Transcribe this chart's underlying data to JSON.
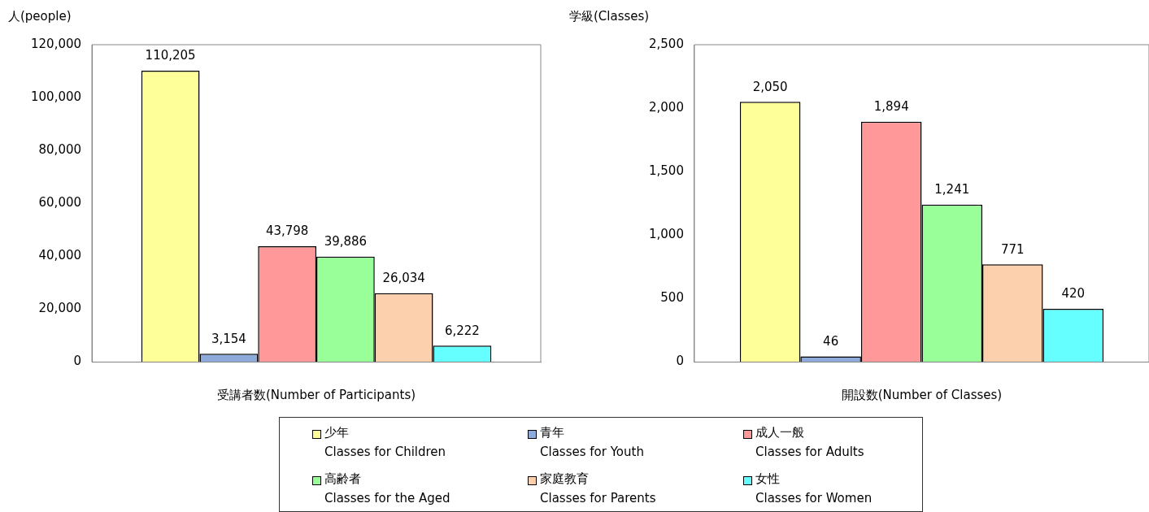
{
  "chart_data": [
    {
      "type": "bar",
      "ylabel": "人(people)",
      "xlabel": "受講者数(Number of Participants)",
      "categories": [
        null
      ],
      "ylim": [
        0,
        120000
      ],
      "yticks": [
        {
          "value": 0,
          "label": "0"
        },
        {
          "value": 20000,
          "label": "20,000"
        },
        {
          "value": 40000,
          "label": "40,000"
        },
        {
          "value": 60000,
          "label": "60,000"
        },
        {
          "value": 80000,
          "label": "80,000"
        },
        {
          "value": 100000,
          "label": "100,000"
        },
        {
          "value": 120000,
          "label": "120,000"
        }
      ],
      "legend": "bottom",
      "grid": false,
      "series": [
        {
          "name": "少年\nClasses for Children",
          "color": "#ffff99",
          "values": [
            110205
          ],
          "value_labels": [
            "110,205"
          ]
        },
        {
          "name": "青年\nClasses for Youth",
          "color": "#8eaadb",
          "values": [
            3154
          ],
          "value_labels": [
            "3,154"
          ]
        },
        {
          "name": "成人一般\nClasses for Adults",
          "color": "#ff9999",
          "values": [
            43798
          ],
          "value_labels": [
            "43,798"
          ]
        },
        {
          "name": "高齢者\nClasses for the Aged",
          "color": "#99ff99",
          "values": [
            39886
          ],
          "value_labels": [
            "39,886"
          ]
        },
        {
          "name": "家庭教育\nClasses for Parents",
          "color": "#fcd0ac",
          "values": [
            26034
          ],
          "value_labels": [
            "26,034"
          ]
        },
        {
          "name": "女性\nClasses for Women",
          "color": "#66ffff",
          "values": [
            6222
          ],
          "value_labels": [
            "6,222"
          ]
        }
      ]
    },
    {
      "type": "bar",
      "ylabel": "学級(Classes)",
      "xlabel": "開設数(Number of Classes)",
      "categories": [
        null
      ],
      "ylim": [
        0,
        2500
      ],
      "yticks": [
        {
          "value": 0,
          "label": "0"
        },
        {
          "value": 500,
          "label": "500"
        },
        {
          "value": 1000,
          "label": "1,000"
        },
        {
          "value": 1500,
          "label": "1,500"
        },
        {
          "value": 2000,
          "label": "2,000"
        },
        {
          "value": 2500,
          "label": "2,500"
        }
      ],
      "grid": false,
      "series": [
        {
          "color": "#ffff99",
          "values": [
            2050
          ],
          "value_labels": [
            "2,050"
          ]
        },
        {
          "color": "#8eaadb",
          "values": [
            46
          ],
          "value_labels": [
            "46"
          ]
        },
        {
          "color": "#ff9999",
          "values": [
            1894
          ],
          "value_labels": [
            "1,894"
          ]
        },
        {
          "color": "#99ff99",
          "values": [
            1241
          ],
          "value_labels": [
            "1,241"
          ]
        },
        {
          "color": "#fcd0ac",
          "values": [
            771
          ],
          "value_labels": [
            "771"
          ]
        },
        {
          "color": "#66ffff",
          "values": [
            420
          ],
          "value_labels": [
            "420"
          ]
        }
      ]
    }
  ]
}
